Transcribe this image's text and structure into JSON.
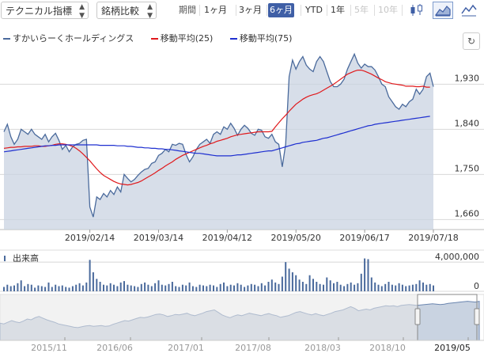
{
  "toolbar": {
    "technical_label": "テクニカル指標",
    "compare_label": "銘柄比較",
    "period_label": "期間",
    "periods": [
      {
        "label": "1ヶ月",
        "state": "normal"
      },
      {
        "label": "3ヶ月",
        "state": "normal"
      },
      {
        "label": "6ヶ月",
        "state": "active"
      },
      {
        "label": "YTD",
        "state": "normal"
      },
      {
        "label": "1年",
        "state": "normal"
      },
      {
        "label": "5年",
        "state": "disabled"
      },
      {
        "label": "10年",
        "state": "disabled"
      }
    ],
    "chart_types": [
      "candlestick-icon",
      "area-chart-icon",
      "line-chart-icon"
    ],
    "active_chart_type": "area-chart-icon"
  },
  "legend": {
    "price": "すかいらーくホールディングス",
    "ma25": "移動平均(25)",
    "ma75": "移動平均(75)"
  },
  "colors": {
    "price_line": "#4a6a9c",
    "price_fill": "#c9d3e1",
    "ma25": "#e0191c",
    "ma75": "#1e2fd0",
    "volume": "#4a6a9c"
  },
  "volume_label": "出来高",
  "chart_data": {
    "type": "line",
    "price_axis": {
      "ticks": [
        "1,930",
        "1,840",
        "1,750",
        "1,660"
      ],
      "tick_values": [
        1930,
        1840,
        1750,
        1660
      ],
      "ylim": [
        1640,
        2000
      ]
    },
    "x_ticks": [
      "2019/02/14",
      "2019/03/14",
      "2019/04/12",
      "2019/05/20",
      "2019/06/17",
      "2019/07/18"
    ],
    "x_tick_index": [
      25,
      45,
      65,
      85,
      105,
      125
    ],
    "series": [
      {
        "name": "すかいらーくホールディングス",
        "values": [
          1835,
          1850,
          1825,
          1810,
          1820,
          1840,
          1835,
          1830,
          1840,
          1830,
          1825,
          1820,
          1830,
          1815,
          1825,
          1832,
          1818,
          1800,
          1808,
          1795,
          1805,
          1810,
          1812,
          1818,
          1820,
          1685,
          1665,
          1705,
          1700,
          1712,
          1705,
          1718,
          1710,
          1725,
          1715,
          1750,
          1742,
          1735,
          1740,
          1748,
          1755,
          1760,
          1762,
          1772,
          1775,
          1788,
          1792,
          1800,
          1795,
          1810,
          1808,
          1812,
          1810,
          1790,
          1775,
          1785,
          1800,
          1810,
          1815,
          1820,
          1812,
          1830,
          1835,
          1830,
          1845,
          1840,
          1852,
          1842,
          1828,
          1840,
          1848,
          1842,
          1832,
          1828,
          1840,
          1838,
          1825,
          1822,
          1830,
          1815,
          1810,
          1765,
          1810,
          1945,
          1978,
          1960,
          1975,
          1985,
          1968,
          1960,
          1955,
          1975,
          1985,
          1975,
          1955,
          1935,
          1925,
          1925,
          1930,
          1940,
          1960,
          1975,
          1990,
          1972,
          1962,
          1970,
          1965,
          1965,
          1958,
          1945,
          1930,
          1925,
          1905,
          1895,
          1885,
          1880,
          1890,
          1885,
          1895,
          1900,
          1920,
          1910,
          1920,
          1945,
          1952,
          1925
        ]
      },
      {
        "name": "移動平均(25)",
        "values": [
          1802,
          1803,
          1804,
          1804,
          1805,
          1805,
          1806,
          1806,
          1806,
          1807,
          1807,
          1806,
          1806,
          1807,
          1808,
          1810,
          1811,
          1811,
          1810,
          1808,
          1806,
          1802,
          1797,
          1791,
          1784,
          1777,
          1769,
          1761,
          1754,
          1748,
          1744,
          1740,
          1736,
          1733,
          1731,
          1730,
          1729,
          1730,
          1732,
          1734,
          1737,
          1741,
          1745,
          1749,
          1753,
          1758,
          1762,
          1767,
          1771,
          1775,
          1780,
          1784,
          1788,
          1791,
          1794,
          1797,
          1800,
          1803,
          1806,
          1808,
          1811,
          1813,
          1816,
          1818,
          1820,
          1822,
          1825,
          1827,
          1829,
          1830,
          1831,
          1832,
          1833,
          1834,
          1835,
          1835,
          1835,
          1835,
          1836,
          1845,
          1853,
          1861,
          1868,
          1876,
          1883,
          1890,
          1895,
          1900,
          1904,
          1907,
          1909,
          1911,
          1914,
          1918,
          1922,
          1926,
          1930,
          1935,
          1940,
          1945,
          1950,
          1953,
          1956,
          1958,
          1958,
          1956,
          1953,
          1950,
          1946,
          1942,
          1939,
          1935,
          1933,
          1931,
          1930,
          1929,
          1928,
          1926,
          1926,
          1926,
          1925,
          1925,
          1926,
          1924,
          1924
        ]
      },
      {
        "name": "移動平均(75)",
        "values": [
          1795,
          1796,
          1797,
          1798,
          1799,
          1800,
          1801,
          1802,
          1803,
          1804,
          1805,
          1806,
          1807,
          1807,
          1808,
          1808,
          1809,
          1809,
          1809,
          1809,
          1809,
          1809,
          1809,
          1809,
          1809,
          1809,
          1809,
          1809,
          1808,
          1808,
          1808,
          1808,
          1808,
          1807,
          1807,
          1807,
          1806,
          1806,
          1805,
          1804,
          1804,
          1803,
          1803,
          1802,
          1802,
          1801,
          1801,
          1800,
          1800,
          1799,
          1798,
          1797,
          1796,
          1795,
          1794,
          1793,
          1792,
          1792,
          1791,
          1790,
          1789,
          1788,
          1787,
          1787,
          1787,
          1787,
          1787,
          1788,
          1789,
          1789,
          1790,
          1791,
          1792,
          1793,
          1794,
          1795,
          1796,
          1797,
          1797,
          1799,
          1801,
          1803,
          1805,
          1807,
          1809,
          1811,
          1812,
          1814,
          1815,
          1816,
          1817,
          1818,
          1820,
          1822,
          1823,
          1825,
          1827,
          1829,
          1831,
          1833,
          1835,
          1837,
          1839,
          1841,
          1843,
          1845,
          1847,
          1848,
          1850,
          1851,
          1852,
          1853,
          1854,
          1855,
          1856,
          1857,
          1858,
          1859,
          1860,
          1861,
          1862,
          1863,
          1864,
          1865,
          1866
        ]
      }
    ],
    "volume": {
      "label": "出来高",
      "ticks": [
        "4,000,000",
        "0"
      ],
      "tick_values": [
        4000000,
        0
      ],
      "ylim": [
        0,
        5200000
      ],
      "values": [
        600000,
        900000,
        700000,
        800000,
        1100000,
        1500000,
        700000,
        1000000,
        900000,
        500000,
        800000,
        700000,
        600000,
        1200000,
        600000,
        900000,
        700000,
        800000,
        600000,
        500000,
        700000,
        900000,
        1100000,
        800000,
        1200000,
        4300000,
        2600000,
        1700000,
        1300000,
        900000,
        800000,
        1100000,
        900000,
        700000,
        1200000,
        1400000,
        900000,
        800000,
        700000,
        600000,
        1000000,
        1200000,
        900000,
        700000,
        1100000,
        1500000,
        900000,
        800000,
        1000000,
        1300000,
        700000,
        600000,
        900000,
        800000,
        1200000,
        700000,
        600000,
        900000,
        800000,
        700000,
        900000,
        800000,
        600000,
        1000000,
        1200000,
        700000,
        900000,
        800000,
        1100000,
        900000,
        600000,
        800000,
        1000000,
        900000,
        700000,
        1100000,
        800000,
        1300000,
        1600000,
        1200000,
        1000000,
        2000000,
        4000000,
        3100000,
        2600000,
        2200000,
        1600000,
        1300000,
        1000000,
        2200000,
        1700000,
        1300000,
        1000000,
        900000,
        1900000,
        1500000,
        1100000,
        1300000,
        900000,
        700000,
        1000000,
        1200000,
        900000,
        1100000,
        2400000,
        4500000,
        4400000,
        1900000,
        1200000,
        900000,
        700000,
        1000000,
        1300000,
        900000,
        800000,
        1100000,
        900000,
        700000,
        800000,
        900000,
        1000000,
        1500000,
        1200000,
        900000,
        1000000,
        800000
      ]
    },
    "navigator": {
      "x_ticks": [
        "2015/11",
        "2016/06",
        "2017/01",
        "2017/08",
        "2018/03",
        "2018/10",
        "2019/05"
      ],
      "values": [
        0.42,
        0.4,
        0.44,
        0.48,
        0.45,
        0.43,
        0.47,
        0.52,
        0.5,
        0.55,
        0.58,
        0.54,
        0.5,
        0.47,
        0.44,
        0.4,
        0.38,
        0.36,
        0.34,
        0.32,
        0.31,
        0.33,
        0.35,
        0.36,
        0.34,
        0.35,
        0.36,
        0.34,
        0.35,
        0.39,
        0.42,
        0.45,
        0.48,
        0.47,
        0.5,
        0.53,
        0.56,
        0.55,
        0.57,
        0.6,
        0.63,
        0.64,
        0.62,
        0.58,
        0.6,
        0.63,
        0.62,
        0.64,
        0.66,
        0.62,
        0.6,
        0.63,
        0.66,
        0.7,
        0.72,
        0.74,
        0.68,
        0.62,
        0.58,
        0.55,
        0.59,
        0.62,
        0.6,
        0.63,
        0.66,
        0.64,
        0.62,
        0.6,
        0.63,
        0.65,
        0.62,
        0.6,
        0.56,
        0.58,
        0.6,
        0.64,
        0.68,
        0.7,
        0.67,
        0.64,
        0.62,
        0.65,
        0.62,
        0.6,
        0.63,
        0.66,
        0.7,
        0.72,
        0.74,
        0.78,
        0.82,
        0.78,
        0.72,
        0.74,
        0.76,
        0.74,
        0.78,
        0.8,
        0.82,
        0.84,
        0.83,
        0.84,
        0.82,
        0.85,
        0.86,
        0.87,
        0.86,
        0.85,
        0.86,
        0.87,
        0.88,
        0.89,
        0.88,
        0.87,
        0.88,
        0.9,
        0.91,
        0.92,
        0.93,
        0.94,
        0.95,
        0.94,
        0.93,
        0.95
      ]
    }
  }
}
